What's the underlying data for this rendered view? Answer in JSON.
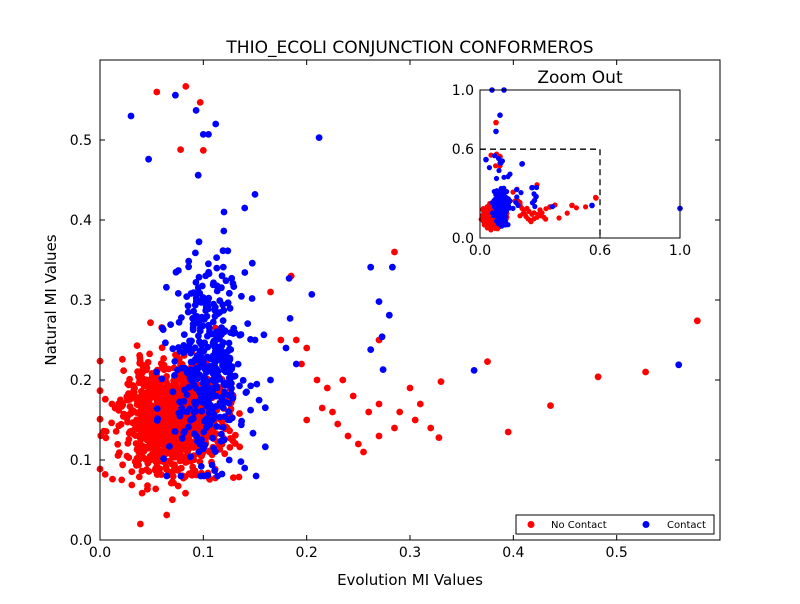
{
  "chart_data": [
    {
      "type": "scatter",
      "title": "THIO_ECOLI CONJUNCTION CONFORMEROS",
      "xlabel": "Evolution MI Values",
      "ylabel": "Natural MI Values",
      "xlim": [
        0.0,
        0.6
      ],
      "ylim": [
        0.0,
        0.6
      ],
      "xticks": [
        "0.0",
        "0.1",
        "0.2",
        "0.3",
        "0.4",
        "0.5"
      ],
      "yticks": [
        "0.0",
        "0.1",
        "0.2",
        "0.3",
        "0.4",
        "0.5"
      ],
      "grid": false,
      "legend": {
        "placement": "bottom-right",
        "entries": [
          "No Contact",
          "Contact"
        ]
      },
      "series": [
        {
          "name": "No Contact",
          "color": "#ff0000",
          "cluster": {
            "center": [
              0.07,
              0.15
            ],
            "spread": [
              0.025,
              0.035
            ],
            "count": 1100,
            "range_x": [
              0.0,
              0.18
            ],
            "range_y": [
              0.02,
              0.34
            ],
            "note_points": []
          },
          "points": [
            [
              0.055,
              0.56
            ],
            [
              0.083,
              0.567
            ],
            [
              0.097,
              0.547
            ],
            [
              0.078,
              0.488
            ],
            [
              0.1,
              0.487
            ],
            [
              0.185,
              0.33
            ],
            [
              0.19,
              0.25
            ],
            [
              0.2,
              0.24
            ],
            [
              0.21,
              0.2
            ],
            [
              0.22,
              0.19
            ],
            [
              0.235,
              0.2
            ],
            [
              0.245,
              0.18
            ],
            [
              0.26,
              0.16
            ],
            [
              0.27,
              0.17
            ],
            [
              0.285,
              0.36
            ],
            [
              0.27,
              0.25
            ],
            [
              0.29,
              0.16
            ],
            [
              0.305,
              0.15
            ],
            [
              0.31,
              0.17
            ],
            [
              0.32,
              0.14
            ],
            [
              0.328,
              0.128
            ],
            [
              0.3,
              0.19
            ],
            [
              0.33,
              0.198
            ],
            [
              0.25,
              0.12
            ],
            [
              0.255,
              0.11
            ],
            [
              0.375,
              0.223
            ],
            [
              0.395,
              0.135
            ],
            [
              0.436,
              0.168
            ],
            [
              0.482,
              0.204
            ],
            [
              0.528,
              0.21
            ],
            [
              0.578,
              0.274
            ],
            [
              0.285,
              0.14
            ],
            [
              0.24,
              0.13
            ],
            [
              0.23,
              0.145
            ],
            [
              0.27,
              0.13
            ],
            [
              0.2,
              0.15
            ],
            [
              0.215,
              0.165
            ],
            [
              0.225,
              0.16
            ],
            [
              0.195,
              0.22
            ],
            [
              0.175,
              0.25
            ],
            [
              0.165,
              0.31
            ]
          ]
        },
        {
          "name": "Contact",
          "color": "#0000ff",
          "cluster": {
            "center": [
              0.105,
              0.22
            ],
            "spread": [
              0.018,
              0.06
            ],
            "count": 420,
            "range_x": [
              0.05,
              0.16
            ],
            "range_y": [
              0.08,
              0.47
            ],
            "note_points": []
          },
          "points": [
            [
              0.03,
              0.53
            ],
            [
              0.047,
              0.476
            ],
            [
              0.073,
              0.556
            ],
            [
              0.093,
              0.537
            ],
            [
              0.1,
              0.507
            ],
            [
              0.112,
              0.52
            ],
            [
              0.105,
              0.507
            ],
            [
              0.095,
              0.456
            ],
            [
              0.12,
              0.41
            ],
            [
              0.14,
              0.415
            ],
            [
              0.15,
              0.432
            ],
            [
              0.212,
              0.503
            ],
            [
              0.183,
              0.327
            ],
            [
              0.184,
              0.277
            ],
            [
              0.205,
              0.307
            ],
            [
              0.262,
              0.341
            ],
            [
              0.27,
              0.298
            ],
            [
              0.273,
              0.254
            ],
            [
              0.28,
              0.281
            ],
            [
              0.283,
              0.341
            ],
            [
              0.262,
              0.238
            ],
            [
              0.274,
              0.213
            ],
            [
              0.18,
              0.24
            ],
            [
              0.19,
              0.22
            ],
            [
              0.362,
              0.212
            ],
            [
              0.56,
              0.219
            ],
            [
              0.15,
              0.25
            ],
            [
              0.165,
              0.2
            ],
            [
              0.14,
              0.09
            ],
            [
              0.125,
              0.1
            ]
          ]
        }
      ]
    },
    {
      "type": "scatter",
      "title": "Zoom Out",
      "xlim": [
        0.0,
        1.0
      ],
      "ylim": [
        0.0,
        1.0
      ],
      "xticks": [
        "0.0",
        "0.6",
        "1.0"
      ],
      "yticks": [
        "0.0",
        "0.6",
        "1.0"
      ],
      "zoom_box": [
        0.6,
        0.6
      ],
      "series": [
        {
          "name": "No Contact",
          "color": "#ff0000",
          "points": [
            [
              0.08,
              0.78
            ],
            [
              0.35,
              0.21
            ],
            [
              0.46,
              0.22
            ],
            [
              0.58,
              0.27
            ],
            [
              0.1,
              0.55
            ],
            [
              0.2,
              0.22
            ]
          ]
        },
        {
          "name": "Contact",
          "color": "#0000ff",
          "points": [
            [
              0.06,
              1.0
            ],
            [
              0.12,
              1.0
            ],
            [
              0.03,
              0.53
            ],
            [
              0.1,
              0.83
            ],
            [
              0.08,
              0.72
            ],
            [
              0.21,
              0.5
            ],
            [
              0.56,
              0.22
            ],
            [
              1.0,
              0.2
            ],
            [
              0.26,
              0.34
            ],
            [
              0.28,
              0.28
            ]
          ]
        }
      ]
    }
  ]
}
